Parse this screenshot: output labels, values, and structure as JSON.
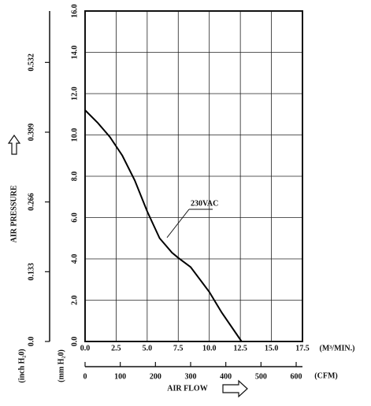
{
  "chart_data": {
    "type": "line",
    "x_label": "(M³/MIN.)",
    "y_label": "AIR PRESSURE",
    "y_unit": "(mm H₂0)",
    "y2_unit": "(inch H₂0)",
    "x2_unit": "(CFM)",
    "x2_label": "AIR FLOW",
    "x": [
      0,
      1,
      2,
      3,
      4,
      5,
      6,
      7,
      7.5,
      8.5,
      10,
      11,
      12.6
    ],
    "series": [
      {
        "name": "230VAC",
        "color": "#000000",
        "values": [
          11.2,
          10.6,
          9.9,
          9.0,
          7.8,
          6.3,
          5.0,
          4.3,
          4.05,
          3.6,
          2.4,
          1.4,
          0
        ]
      }
    ],
    "xlim": [
      0,
      17.5
    ],
    "xticks": [
      {
        "value": 0,
        "label": "0.0"
      },
      2.5,
      {
        "value": 5,
        "label": "5.0"
      },
      7.5,
      {
        "value": 10,
        "label": "10.0"
      },
      12.5,
      {
        "value": 15,
        "label": "15.0"
      },
      17.5
    ],
    "ylim": [
      0,
      16
    ],
    "yticks": [
      {
        "value": 0,
        "label": "0.0"
      },
      {
        "value": 2,
        "label": "2.0"
      },
      {
        "value": 4,
        "label": "4.0"
      },
      {
        "value": 6,
        "label": "6.0"
      },
      {
        "value": 8,
        "label": "8.0"
      },
      {
        "value": 10,
        "label": "10.0"
      },
      {
        "value": 12,
        "label": "12.0"
      },
      {
        "value": 14,
        "label": "14.0"
      },
      {
        "value": 16,
        "label": "16.0"
      }
    ],
    "y2lim": [
      0,
      0.63
    ],
    "y2ticks": [
      {
        "value": 0,
        "label": "0.0"
      },
      0.133,
      0.266,
      0.399,
      0.532
    ],
    "x2lim": [
      0,
      617.9
    ],
    "x2ticks": [
      0,
      100,
      200,
      300,
      400,
      500,
      600
    ],
    "grid": true
  }
}
